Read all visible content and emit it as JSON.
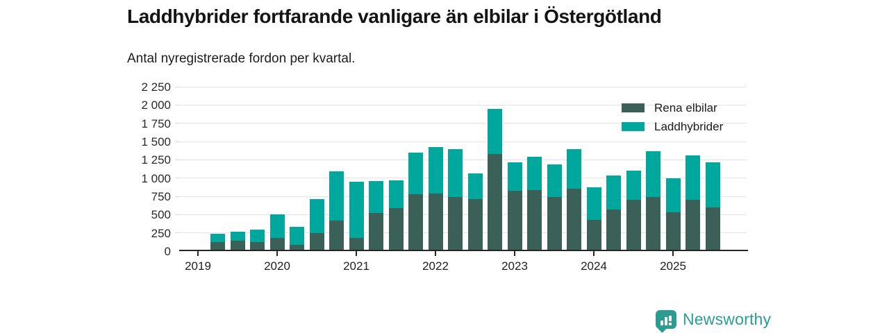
{
  "header": {
    "title": "Laddhybrider fortfarande vanligare än elbilar i Östergötland",
    "subtitle": "Antal nyregistrerade fordon per kvartal."
  },
  "colors": {
    "elbilar": "#3b6058",
    "laddhybrider": "#00a79c",
    "axis": "#252525",
    "grid": "#e4e4e4",
    "brand": "#2d9c90"
  },
  "legend": {
    "items": [
      {
        "label": "Rena elbilar",
        "color": "#3b6058"
      },
      {
        "label": "Laddhybrider",
        "color": "#00a79c"
      }
    ]
  },
  "footer": {
    "brand": "Newsworthy",
    "chart_icon": "bar-chart-speech-bubble-icon"
  },
  "chart_data": {
    "type": "bar",
    "stacked": true,
    "title": "Laddhybrider fortfarande vanligare än elbilar i Östergötland",
    "subtitle": "Antal nyregistrerade fordon per kvartal.",
    "xlabel": "",
    "ylabel": "",
    "grid": true,
    "legend_position": "top-right",
    "ylim": [
      0,
      2250
    ],
    "y_ticks": [
      0,
      250,
      500,
      750,
      1000,
      1250,
      1500,
      1750,
      2000,
      2250
    ],
    "y_tick_labels": [
      "0",
      "250",
      "500",
      "750",
      "1 000",
      "1 250",
      "1 500",
      "1 750",
      "2 000",
      "2 250"
    ],
    "x_tick_labels": [
      "2019",
      "2020",
      "2021",
      "2022",
      "2023",
      "2024",
      "2025"
    ],
    "categories": [
      "2019 Q2",
      "2019 Q3",
      "2019 Q4",
      "2020 Q1",
      "2020 Q2",
      "2020 Q3",
      "2020 Q4",
      "2021 Q1",
      "2021 Q2",
      "2021 Q3",
      "2021 Q4",
      "2022 Q1",
      "2022 Q2",
      "2022 Q3",
      "2022 Q4",
      "2023 Q1",
      "2023 Q2",
      "2023 Q3",
      "2023 Q4",
      "2024 Q1",
      "2024 Q2",
      "2024 Q3",
      "2024 Q4",
      "2025 Q1",
      "2025 Q2",
      "2025 Q3"
    ],
    "series": [
      {
        "name": "Rena elbilar",
        "color": "#3b6058",
        "values": [
          120,
          145,
          120,
          185,
          90,
          250,
          415,
          185,
          520,
          585,
          775,
          790,
          740,
          710,
          1325,
          830,
          840,
          740,
          850,
          430,
          570,
          705,
          745,
          535,
          700,
          600
        ]
      },
      {
        "name": "Laddhybrider",
        "color": "#00a79c",
        "values": [
          120,
          120,
          175,
          315,
          245,
          460,
          680,
          760,
          435,
          385,
          575,
          630,
          655,
          350,
          625,
          385,
          450,
          445,
          545,
          440,
          465,
          400,
          620,
          465,
          615,
          615
        ]
      }
    ]
  }
}
